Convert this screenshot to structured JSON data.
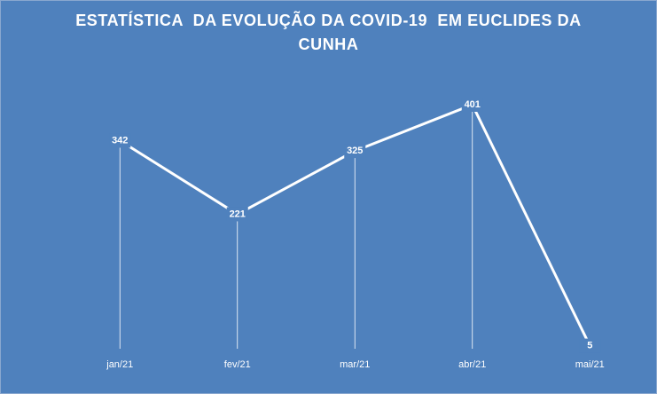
{
  "chart_data": {
    "type": "line",
    "title": "ESTATÍSTICA  DA EVOLUÇÃO DA COVID-19  EM EUCLIDES DA CUNHA",
    "categories": [
      "jan/21",
      "fev/21",
      "mar/21",
      "abr/21",
      "mai/21"
    ],
    "values": [
      342,
      221,
      325,
      401,
      5
    ],
    "color": "#ffffff",
    "background": "#4f81bd"
  }
}
